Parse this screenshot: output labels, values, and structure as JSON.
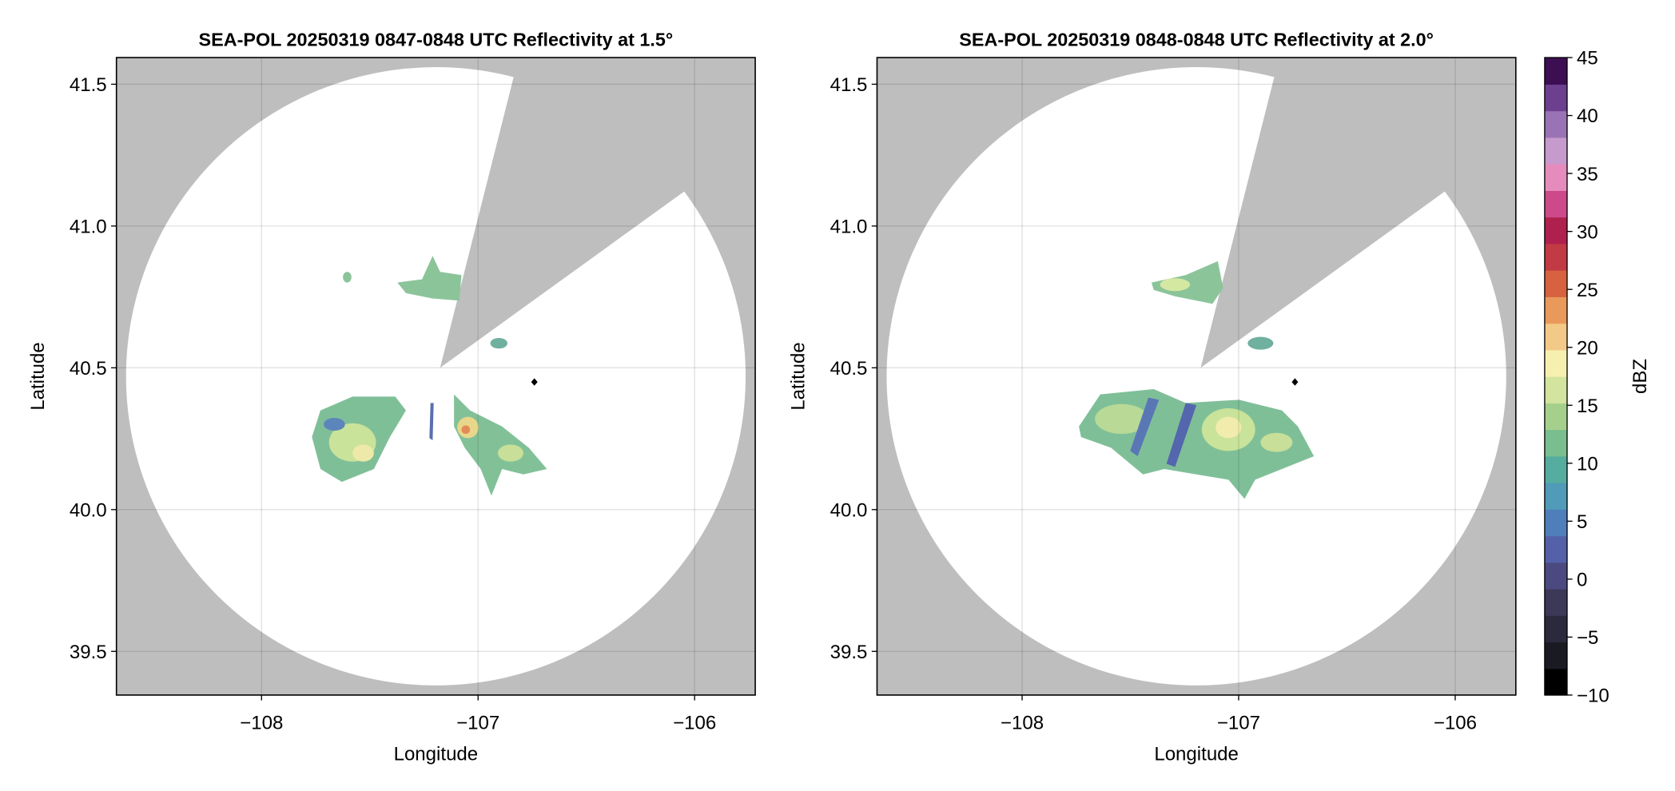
{
  "chart_data": [
    {
      "type": "radar",
      "title": "SEA-POL 20250319 0847-0848 UTC Reflectivity at 1.5°",
      "xlabel": "Longitude",
      "ylabel": "Latitude",
      "xlim": [
        -108.67,
        -105.72
      ],
      "ylim": [
        39.346,
        41.594
      ],
      "xticks": [
        {
          "value": -108,
          "label": "−108"
        },
        {
          "value": -107,
          "label": "−107"
        },
        {
          "value": -106,
          "label": "−106"
        }
      ],
      "yticks": [
        39.5,
        {
          "value": 40,
          "label": "40.0"
        },
        40.5,
        {
          "value": 41,
          "label": "41.0"
        },
        41.5
      ],
      "grid": true,
      "background": "#bebebe",
      "marker": {
        "x": -106.74,
        "y": 40.45,
        "color": "#000000"
      }
    },
    {
      "type": "radar",
      "title": "SEA-POL 20250319 0848-0848 UTC Reflectivity at 2.0°",
      "xlabel": "Longitude",
      "ylabel": "Latitude",
      "xlim": [
        -108.67,
        -105.72
      ],
      "ylim": [
        39.346,
        41.594
      ],
      "xticks": [
        {
          "value": -108,
          "label": "−108"
        },
        {
          "value": -107,
          "label": "−107"
        },
        {
          "value": -106,
          "label": "−106"
        }
      ],
      "yticks": [
        39.5,
        {
          "value": 40,
          "label": "40.0"
        },
        40.5,
        {
          "value": 41,
          "label": "41.0"
        },
        41.5
      ],
      "grid": true,
      "background": "#bebebe",
      "marker": {
        "x": -106.74,
        "y": 40.45,
        "color": "#000000"
      },
      "colorbar": {
        "label": "dBZ",
        "lim": [
          -10,
          45
        ],
        "ticks": [
          {
            "value": -10,
            "label": "−10"
          },
          {
            "value": -5,
            "label": "−5"
          },
          0,
          5,
          10,
          15,
          20,
          25,
          30,
          35,
          40,
          45
        ],
        "colors": [
          "#000000",
          "#1a1a22",
          "#2b2a3c",
          "#3b3858",
          "#4b4a80",
          "#5461a8",
          "#4f7fbb",
          "#4f9bb8",
          "#55ada0",
          "#78be8e",
          "#a5d08c",
          "#d3e49e",
          "#f6f0b0",
          "#f3c987",
          "#e99a5a",
          "#d7623f",
          "#c23a44",
          "#b0204e",
          "#cc4a8a",
          "#e58cbd",
          "#c79acd",
          "#9a73b4",
          "#6c3f8f",
          "#3d0f52"
        ]
      }
    }
  ]
}
